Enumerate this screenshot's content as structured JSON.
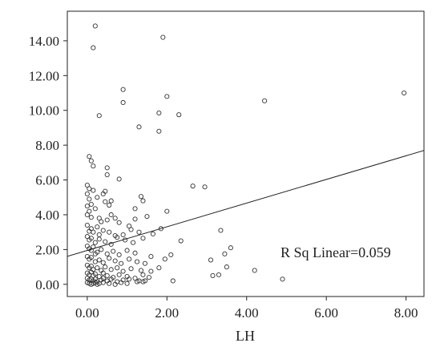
{
  "chart_data": {
    "type": "scatter",
    "title": "",
    "xlabel": "LH",
    "ylabel": "",
    "xlim": [
      -0.5,
      8.45
    ],
    "ylim": [
      -0.7,
      15.7
    ],
    "x_ticks": [
      "0.00",
      "2.00",
      "4.00",
      "6.00",
      "8.00"
    ],
    "y_ticks": [
      "0.00",
      "2.00",
      "4.00",
      "6.00",
      "8.00",
      "10.00",
      "12.00",
      "14.00"
    ],
    "grid": false,
    "annotation": "R Sq Linear=0.059",
    "fit_line": {
      "intercept": 1.95,
      "slope": 0.68
    },
    "points": [
      [
        0.2,
        14.85
      ],
      [
        0.15,
        13.6
      ],
      [
        1.9,
        14.2
      ],
      [
        0.9,
        11.2
      ],
      [
        2.0,
        10.8
      ],
      [
        0.9,
        10.45
      ],
      [
        4.45,
        10.55
      ],
      [
        7.95,
        11.0
      ],
      [
        1.8,
        9.85
      ],
      [
        0.3,
        9.7
      ],
      [
        2.3,
        9.75
      ],
      [
        1.3,
        9.05
      ],
      [
        1.8,
        8.8
      ],
      [
        0.05,
        7.35
      ],
      [
        0.1,
        7.1
      ],
      [
        0.5,
        6.7
      ],
      [
        0.15,
        6.8
      ],
      [
        0.8,
        6.05
      ],
      [
        0.5,
        6.3
      ],
      [
        0.0,
        5.7
      ],
      [
        0.05,
        5.5
      ],
      [
        0.15,
        5.4
      ],
      [
        0.25,
        5.0
      ],
      [
        0.4,
        5.2
      ],
      [
        2.65,
        5.65
      ],
      [
        2.95,
        5.6
      ],
      [
        0.45,
        4.75
      ],
      [
        0.55,
        4.55
      ],
      [
        0.6,
        4.8
      ],
      [
        1.35,
        5.05
      ],
      [
        1.4,
        4.8
      ],
      [
        1.2,
        4.35
      ],
      [
        2.0,
        4.2
      ],
      [
        0.0,
        4.0
      ],
      [
        0.05,
        4.2
      ],
      [
        0.1,
        3.85
      ],
      [
        0.2,
        4.35
      ],
      [
        0.3,
        3.8
      ],
      [
        0.5,
        3.7
      ],
      [
        0.6,
        4.0
      ],
      [
        0.7,
        3.8
      ],
      [
        0.8,
        3.55
      ],
      [
        1.05,
        3.35
      ],
      [
        1.2,
        3.75
      ],
      [
        1.5,
        3.9
      ],
      [
        0.0,
        3.4
      ],
      [
        0.05,
        3.05
      ],
      [
        0.1,
        3.2
      ],
      [
        0.15,
        3.0
      ],
      [
        0.25,
        3.3
      ],
      [
        0.4,
        3.1
      ],
      [
        0.55,
        3.0
      ],
      [
        0.7,
        2.8
      ],
      [
        0.9,
        2.85
      ],
      [
        1.1,
        3.15
      ],
      [
        1.3,
        3.0
      ],
      [
        1.65,
        2.9
      ],
      [
        1.85,
        3.2
      ],
      [
        0.0,
        2.75
      ],
      [
        0.05,
        2.55
      ],
      [
        0.1,
        2.65
      ],
      [
        0.2,
        2.4
      ],
      [
        0.3,
        2.6
      ],
      [
        0.45,
        2.45
      ],
      [
        0.6,
        2.3
      ],
      [
        0.75,
        2.7
      ],
      [
        0.95,
        2.55
      ],
      [
        1.15,
        2.4
      ],
      [
        1.4,
        2.65
      ],
      [
        2.35,
        2.5
      ],
      [
        0.0,
        2.2
      ],
      [
        0.05,
        2.05
      ],
      [
        0.1,
        1.95
      ],
      [
        0.15,
        2.15
      ],
      [
        0.25,
        1.85
      ],
      [
        0.35,
        2.0
      ],
      [
        0.5,
        1.75
      ],
      [
        0.65,
        1.9
      ],
      [
        0.8,
        1.7
      ],
      [
        1.0,
        1.95
      ],
      [
        1.2,
        1.8
      ],
      [
        3.35,
        3.1
      ],
      [
        3.6,
        2.1
      ],
      [
        3.45,
        1.75
      ],
      [
        3.1,
        1.4
      ],
      [
        2.1,
        1.7
      ],
      [
        1.95,
        1.45
      ],
      [
        1.6,
        1.6
      ],
      [
        0.0,
        1.6
      ],
      [
        0.05,
        1.45
      ],
      [
        0.1,
        1.55
      ],
      [
        0.2,
        1.3
      ],
      [
        0.3,
        1.4
      ],
      [
        0.4,
        1.25
      ],
      [
        0.55,
        1.5
      ],
      [
        0.7,
        1.35
      ],
      [
        0.85,
        1.2
      ],
      [
        1.05,
        1.45
      ],
      [
        1.25,
        1.3
      ],
      [
        1.45,
        1.2
      ],
      [
        0.0,
        1.1
      ],
      [
        0.05,
        0.95
      ],
      [
        0.1,
        1.05
      ],
      [
        0.15,
        0.85
      ],
      [
        0.25,
        0.95
      ],
      [
        0.35,
        0.8
      ],
      [
        0.45,
        1.0
      ],
      [
        0.6,
        0.85
      ],
      [
        0.75,
        0.95
      ],
      [
        0.9,
        0.75
      ],
      [
        1.1,
        0.9
      ],
      [
        1.35,
        0.8
      ],
      [
        1.6,
        0.75
      ],
      [
        1.8,
        0.95
      ],
      [
        3.5,
        1.0
      ],
      [
        4.2,
        0.8
      ],
      [
        0.0,
        0.65
      ],
      [
        0.05,
        0.55
      ],
      [
        0.1,
        0.7
      ],
      [
        0.15,
        0.5
      ],
      [
        0.2,
        0.6
      ],
      [
        0.3,
        0.45
      ],
      [
        0.4,
        0.65
      ],
      [
        0.5,
        0.5
      ],
      [
        0.65,
        0.4
      ],
      [
        0.8,
        0.55
      ],
      [
        1.0,
        0.45
      ],
      [
        1.2,
        0.35
      ],
      [
        1.4,
        0.55
      ],
      [
        1.55,
        0.4
      ],
      [
        0.0,
        0.35
      ],
      [
        0.05,
        0.25
      ],
      [
        0.1,
        0.3
      ],
      [
        0.15,
        0.2
      ],
      [
        0.2,
        0.3
      ],
      [
        0.25,
        0.15
      ],
      [
        0.35,
        0.25
      ],
      [
        0.5,
        0.2
      ],
      [
        0.6,
        0.3
      ],
      [
        0.75,
        0.15
      ],
      [
        0.9,
        0.25
      ],
      [
        1.05,
        0.3
      ],
      [
        1.25,
        0.15
      ],
      [
        1.45,
        0.2
      ],
      [
        1.3,
        0.2
      ],
      [
        1.4,
        0.15
      ],
      [
        2.15,
        0.2
      ],
      [
        3.15,
        0.5
      ],
      [
        3.3,
        0.55
      ],
      [
        4.9,
        0.3
      ],
      [
        0.0,
        0.1
      ],
      [
        0.05,
        0.05
      ],
      [
        0.1,
        0.0
      ],
      [
        0.15,
        0.05
      ],
      [
        0.2,
        0.1
      ],
      [
        0.25,
        0.0
      ],
      [
        0.3,
        0.05
      ],
      [
        0.4,
        0.1
      ],
      [
        0.55,
        0.05
      ],
      [
        0.7,
        0.0
      ],
      [
        0.85,
        0.1
      ],
      [
        1.0,
        0.05
      ],
      [
        0.0,
        4.5
      ],
      [
        0.05,
        4.9
      ],
      [
        0.0,
        5.2
      ],
      [
        0.1,
        4.6
      ],
      [
        0.45,
        5.35
      ],
      [
        0.3,
        2.85
      ],
      [
        0.35,
        3.6
      ],
      [
        0.2,
        1.75
      ],
      [
        0.4,
        0.35
      ]
    ]
  }
}
